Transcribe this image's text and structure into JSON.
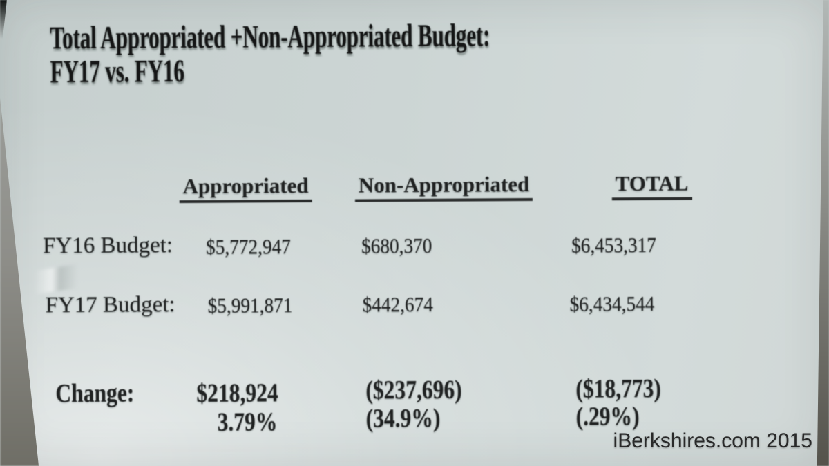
{
  "colors": {
    "screen_background": "#ccd5d4",
    "ink": "#202222",
    "title_ink": "#151616",
    "edge_shadow_dark": "#54524b",
    "watermark_ink": "#2a2a2a"
  },
  "title": {
    "line1": "Total Appropriated +Non-Appropriated Budget:",
    "line2": "FY17 vs. FY16"
  },
  "table": {
    "column_headers": [
      "Appropriated",
      "Non-Appropriated",
      "TOTAL"
    ],
    "rows": [
      {
        "label": "FY16 Budget:",
        "values": [
          "$5,772,947",
          "$680,370",
          "$6,453,317"
        ]
      },
      {
        "label": "FY17 Budget:",
        "values": [
          "$5,991,871",
          "$442,674",
          "$6,434,544"
        ]
      }
    ],
    "change": {
      "label": "Change:",
      "amounts": [
        "$218,924",
        "($237,696)",
        "($18,773)"
      ],
      "percents": [
        "3.79%",
        "(34.9%)",
        "(.29%)"
      ]
    }
  },
  "watermark": {
    "text": "iBerkshires.com 2015"
  }
}
